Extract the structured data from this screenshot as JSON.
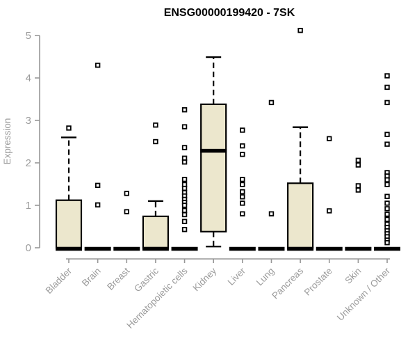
{
  "chart_data": {
    "type": "boxplot",
    "title": "ENSG00000199420 - 7SK",
    "ylabel": "Expression",
    "ylim": [
      0,
      5
    ],
    "yticks": [
      0,
      1,
      2,
      3,
      4,
      5
    ],
    "grid": false,
    "legend": "none",
    "categories": [
      "Bladder",
      "Brain",
      "Breast",
      "Gastric",
      "Hematopoietic cells",
      "Kidney",
      "Liver",
      "Lung",
      "Pancreas",
      "Prostate",
      "Skin",
      "Unknown / Other"
    ],
    "series": [
      {
        "category": "Bladder",
        "whisker_low": 0,
        "q1": 0,
        "median": 0,
        "q3": 1.12,
        "whisker_high": 2.6,
        "outliers": [
          2.82
        ]
      },
      {
        "category": "Brain",
        "whisker_low": 0,
        "q1": 0,
        "median": 0,
        "q3": 0,
        "whisker_high": 0,
        "outliers": [
          4.3,
          1.47,
          1.01
        ]
      },
      {
        "category": "Breast",
        "whisker_low": 0,
        "q1": 0,
        "median": 0,
        "q3": 0,
        "whisker_high": 0,
        "outliers": [
          1.28,
          0.85
        ]
      },
      {
        "category": "Gastric",
        "whisker_low": 0,
        "q1": 0,
        "median": 0,
        "q3": 0.74,
        "whisker_high": 1.1,
        "outliers": [
          2.89,
          2.5
        ]
      },
      {
        "category": "Hematopoietic cells",
        "whisker_low": 0,
        "q1": 0,
        "median": 0,
        "q3": 0,
        "whisker_high": 0,
        "outliers": [
          3.25,
          2.85,
          2.36,
          2.11,
          2.02,
          1.61,
          1.49,
          1.4,
          1.3,
          1.22,
          1.14,
          1.07,
          1.0,
          0.88,
          0.78,
          0.62,
          0.43
        ]
      },
      {
        "category": "Kidney",
        "whisker_low": 0.03,
        "q1": 0.38,
        "median": 2.31,
        "q3": 3.38,
        "whisker_high": 4.49,
        "outliers": []
      },
      {
        "category": "Liver",
        "whisker_low": 0,
        "q1": 0,
        "median": 0,
        "q3": 0,
        "whisker_high": 0,
        "outliers": [
          2.77,
          2.4,
          2.2,
          1.61,
          1.49,
          1.32,
          1.2,
          1.05,
          0.8
        ]
      },
      {
        "category": "Lung",
        "whisker_low": 0,
        "q1": 0,
        "median": 0,
        "q3": 0,
        "whisker_high": 0,
        "outliers": [
          3.42,
          0.8
        ]
      },
      {
        "category": "Pancreas",
        "whisker_low": 0,
        "q1": 0,
        "median": 0,
        "q3": 1.52,
        "whisker_high": 2.84,
        "outliers": [
          5.12
        ]
      },
      {
        "category": "Prostate",
        "whisker_low": 0,
        "q1": 0,
        "median": 0,
        "q3": 0,
        "whisker_high": 0,
        "outliers": [
          2.57,
          0.87
        ]
      },
      {
        "category": "Skin",
        "whisker_low": 0,
        "q1": 0,
        "median": 0,
        "q3": 0,
        "whisker_high": 0,
        "outliers": [
          2.06,
          1.95,
          1.46,
          1.36
        ]
      },
      {
        "category": "Unknown / Other",
        "whisker_low": 0,
        "q1": 0,
        "median": 0,
        "q3": 0,
        "whisker_high": 0,
        "outliers": [
          4.05,
          3.78,
          3.42,
          2.67,
          2.44,
          1.77,
          1.69,
          1.6,
          1.49,
          1.21,
          1.05,
          0.92,
          0.79,
          0.67,
          0.56,
          0.48,
          0.4,
          0.33,
          0.26,
          0.18,
          0.12
        ]
      }
    ],
    "colors": {
      "box_fill": "#ece7cd",
      "box_border": "#000000",
      "median": "#000000",
      "whisker": "#000000",
      "outlier_border": "#000000",
      "outlier_fill": "#ffffff",
      "axis": "#979797",
      "tick_label": "#9b9b9b",
      "title": "#000000",
      "background": "#ffffff"
    }
  }
}
